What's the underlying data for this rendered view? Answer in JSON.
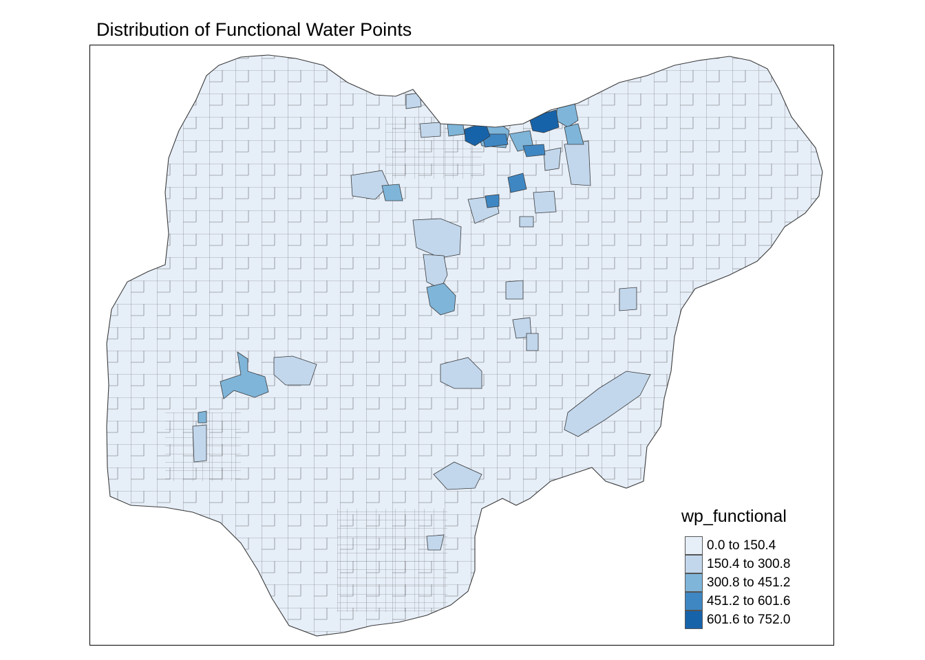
{
  "title": "Distribution of Functional Water Points",
  "legend": {
    "title": "wp_functional",
    "classes": [
      {
        "label": "0.0 to 150.4",
        "color": "#e6eef8"
      },
      {
        "label": "150.4 to 300.8",
        "color": "#c2d7ec"
      },
      {
        "label": "300.8 to 451.2",
        "color": "#7fb5d9"
      },
      {
        "label": "451.2 to 601.6",
        "color": "#3f87c3"
      },
      {
        "label": "601.6 to 752.0",
        "color": "#1763aa"
      }
    ]
  },
  "colors": {
    "border": "#3a3a3a",
    "frame": "#000000",
    "background": "#ffffff"
  }
}
